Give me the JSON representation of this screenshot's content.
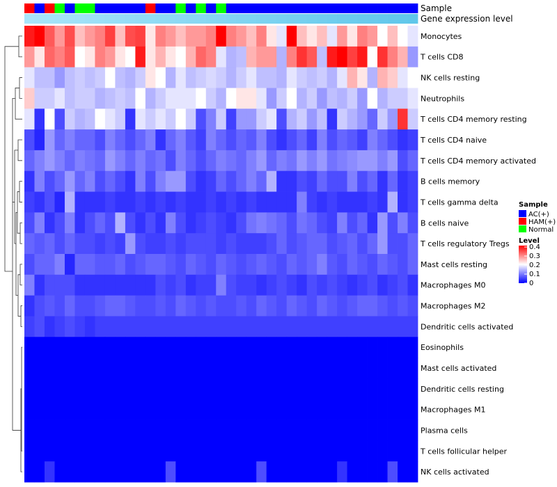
{
  "chart_data": {
    "type": "heatmap",
    "title": "",
    "n_samples": 39,
    "annotations": {
      "sample_label": "Sample",
      "expression_label": "Gene expression level",
      "sample_groups": [
        "HAM(+)",
        "AC(+)",
        "HAM(+)",
        "Normal",
        "AC(+)",
        "Normal",
        "Normal",
        "AC(+)",
        "AC(+)",
        "AC(+)",
        "AC(+)",
        "AC(+)",
        "HAM(+)",
        "AC(+)",
        "AC(+)",
        "Normal",
        "AC(+)",
        "Normal",
        "AC(+)",
        "Normal",
        "AC(+)",
        "AC(+)",
        "AC(+)",
        "AC(+)",
        "AC(+)",
        "AC(+)",
        "AC(+)",
        "AC(+)",
        "AC(+)",
        "AC(+)",
        "AC(+)",
        "AC(+)",
        "AC(+)",
        "AC(+)",
        "AC(+)",
        "AC(+)",
        "AC(+)",
        "AC(+)",
        "AC(+)"
      ],
      "expression_level": [
        0.02,
        0.04,
        0.06,
        0.08,
        0.1,
        0.12,
        0.14,
        0.16,
        0.18,
        0.2,
        0.22,
        0.24,
        0.26,
        0.28,
        0.3,
        0.32,
        0.34,
        0.36,
        0.38,
        0.4,
        0.42,
        0.44,
        0.46,
        0.48,
        0.5,
        0.52,
        0.54,
        0.56,
        0.58,
        0.6,
        0.62,
        0.64,
        0.66,
        0.68,
        0.7,
        0.72,
        0.74,
        0.76,
        0.78
      ]
    },
    "rows": [
      {
        "name": "Monocytes",
        "values": [
          0.38,
          0.4,
          0.33,
          0.28,
          0.34,
          0.25,
          0.28,
          0.3,
          0.35,
          0.25,
          0.34,
          0.35,
          0.22,
          0.3,
          0.28,
          0.25,
          0.28,
          0.28,
          0.3,
          0.4,
          0.3,
          0.28,
          0.25,
          0.3,
          0.22,
          0.18,
          0.4,
          0.25,
          0.22,
          0.25,
          0.18,
          0.28,
          0.22,
          0.3,
          0.28,
          0.2,
          0.25,
          0.2,
          0.18
        ]
      },
      {
        "name": "T cells CD8",
        "values": [
          0.28,
          0.22,
          0.32,
          0.3,
          0.33,
          0.2,
          0.22,
          0.3,
          0.28,
          0.22,
          0.2,
          0.38,
          0.22,
          0.26,
          0.22,
          0.2,
          0.26,
          0.32,
          0.3,
          0.18,
          0.14,
          0.15,
          0.26,
          0.28,
          0.28,
          0.14,
          0.3,
          0.36,
          0.33,
          0.15,
          0.38,
          0.4,
          0.35,
          0.38,
          0.2,
          0.36,
          0.3,
          0.26,
          0.12
        ]
      },
      {
        "name": "NK cells resting",
        "values": [
          0.18,
          0.15,
          0.15,
          0.12,
          0.15,
          0.16,
          0.15,
          0.16,
          0.2,
          0.15,
          0.14,
          0.16,
          0.22,
          0.2,
          0.14,
          0.18,
          0.15,
          0.16,
          0.17,
          0.16,
          0.14,
          0.16,
          0.18,
          0.15,
          0.15,
          0.14,
          0.18,
          0.16,
          0.15,
          0.16,
          0.14,
          0.18,
          0.26,
          0.22,
          0.14,
          0.26,
          0.24,
          0.18,
          0.2
        ]
      },
      {
        "name": "Neutrophils",
        "values": [
          0.24,
          0.16,
          0.16,
          0.18,
          0.15,
          0.16,
          0.16,
          0.14,
          0.15,
          0.16,
          0.15,
          0.2,
          0.14,
          0.16,
          0.18,
          0.18,
          0.18,
          0.2,
          0.16,
          0.14,
          0.2,
          0.22,
          0.22,
          0.18,
          0.12,
          0.16,
          0.2,
          0.14,
          0.16,
          0.12,
          0.15,
          0.14,
          0.16,
          0.12,
          0.2,
          0.14,
          0.16,
          0.16,
          0.18
        ]
      },
      {
        "name": "T cells CD4 memory resting",
        "values": [
          0.18,
          0.04,
          0.2,
          0.06,
          0.16,
          0.14,
          0.15,
          0.2,
          0.18,
          0.16,
          0.04,
          0.18,
          0.16,
          0.18,
          0.16,
          0.2,
          0.16,
          0.06,
          0.1,
          0.16,
          0.05,
          0.12,
          0.12,
          0.16,
          0.18,
          0.06,
          0.14,
          0.16,
          0.12,
          0.15,
          0.04,
          0.16,
          0.14,
          0.12,
          0.08,
          0.16,
          0.12,
          0.36,
          0.16
        ]
      },
      {
        "name": "T cells CD4 naive",
        "values": [
          0.06,
          0.03,
          0.12,
          0.08,
          0.1,
          0.08,
          0.08,
          0.06,
          0.1,
          0.08,
          0.06,
          0.08,
          0.1,
          0.04,
          0.08,
          0.1,
          0.07,
          0.05,
          0.1,
          0.08,
          0.06,
          0.08,
          0.07,
          0.1,
          0.06,
          0.04,
          0.06,
          0.08,
          0.05,
          0.1,
          0.06,
          0.08,
          0.07,
          0.05,
          0.1,
          0.08,
          0.06,
          0.04,
          0.05
        ]
      },
      {
        "name": "T cells CD4 memory activated",
        "values": [
          0.08,
          0.1,
          0.12,
          0.1,
          0.08,
          0.1,
          0.09,
          0.08,
          0.12,
          0.1,
          0.08,
          0.1,
          0.08,
          0.09,
          0.06,
          0.1,
          0.08,
          0.06,
          0.08,
          0.1,
          0.09,
          0.08,
          0.1,
          0.12,
          0.08,
          0.1,
          0.09,
          0.12,
          0.1,
          0.12,
          0.09,
          0.1,
          0.11,
          0.12,
          0.12,
          0.1,
          0.12,
          0.06,
          0.08
        ]
      },
      {
        "name": "B cells memory",
        "values": [
          0.04,
          0.1,
          0.06,
          0.08,
          0.12,
          0.08,
          0.1,
          0.06,
          0.08,
          0.06,
          0.04,
          0.1,
          0.06,
          0.1,
          0.12,
          0.12,
          0.06,
          0.04,
          0.05,
          0.08,
          0.06,
          0.08,
          0.1,
          0.08,
          0.14,
          0.04,
          0.04,
          0.06,
          0.05,
          0.08,
          0.06,
          0.06,
          0.1,
          0.06,
          0.08,
          0.04,
          0.08,
          0.04,
          0.05
        ]
      },
      {
        "name": "T cells gamma delta",
        "values": [
          0.05,
          0.04,
          0.06,
          0.03,
          0.14,
          0.04,
          0.04,
          0.04,
          0.05,
          0.04,
          0.04,
          0.05,
          0.04,
          0.05,
          0.04,
          0.05,
          0.04,
          0.04,
          0.05,
          0.04,
          0.05,
          0.04,
          0.05,
          0.04,
          0.04,
          0.04,
          0.04,
          0.1,
          0.05,
          0.04,
          0.05,
          0.04,
          0.04,
          0.04,
          0.05,
          0.04,
          0.14,
          0.04,
          0.05
        ]
      },
      {
        "name": "B cells naive",
        "values": [
          0.06,
          0.1,
          0.04,
          0.06,
          0.1,
          0.04,
          0.06,
          0.08,
          0.06,
          0.14,
          0.06,
          0.04,
          0.06,
          0.04,
          0.1,
          0.06,
          0.04,
          0.05,
          0.06,
          0.05,
          0.04,
          0.06,
          0.09,
          0.1,
          0.09,
          0.08,
          0.06,
          0.09,
          0.08,
          0.06,
          0.05,
          0.1,
          0.06,
          0.08,
          0.04,
          0.12,
          0.06,
          0.1,
          0.06
        ]
      },
      {
        "name": "T cells regulatory  Tregs",
        "values": [
          0.08,
          0.07,
          0.08,
          0.06,
          0.08,
          0.06,
          0.06,
          0.05,
          0.06,
          0.05,
          0.12,
          0.06,
          0.05,
          0.05,
          0.06,
          0.05,
          0.06,
          0.06,
          0.06,
          0.05,
          0.06,
          0.05,
          0.05,
          0.05,
          0.06,
          0.08,
          0.06,
          0.07,
          0.08,
          0.08,
          0.06,
          0.07,
          0.08,
          0.06,
          0.08,
          0.12,
          0.06,
          0.06,
          0.08
        ]
      },
      {
        "name": "Mast cells resting",
        "values": [
          0.06,
          0.08,
          0.08,
          0.1,
          0.03,
          0.08,
          0.08,
          0.07,
          0.07,
          0.08,
          0.06,
          0.07,
          0.08,
          0.08,
          0.07,
          0.06,
          0.08,
          0.07,
          0.06,
          0.08,
          0.07,
          0.06,
          0.07,
          0.08,
          0.07,
          0.06,
          0.08,
          0.07,
          0.08,
          0.1,
          0.07,
          0.06,
          0.08,
          0.07,
          0.06,
          0.08,
          0.07,
          0.06,
          0.08
        ]
      },
      {
        "name": "Macrophages M0",
        "values": [
          0.1,
          0.04,
          0.06,
          0.06,
          0.06,
          0.04,
          0.04,
          0.04,
          0.04,
          0.04,
          0.04,
          0.04,
          0.04,
          0.06,
          0.05,
          0.06,
          0.04,
          0.05,
          0.05,
          0.1,
          0.06,
          0.05,
          0.05,
          0.04,
          0.05,
          0.06,
          0.05,
          0.04,
          0.06,
          0.05,
          0.06,
          0.05,
          0.04,
          0.05,
          0.06,
          0.04,
          0.05,
          0.06,
          0.04
        ]
      },
      {
        "name": "Macrophages M2",
        "values": [
          0.04,
          0.06,
          0.07,
          0.06,
          0.08,
          0.06,
          0.06,
          0.07,
          0.08,
          0.08,
          0.07,
          0.06,
          0.06,
          0.07,
          0.06,
          0.08,
          0.07,
          0.06,
          0.07,
          0.06,
          0.06,
          0.07,
          0.06,
          0.08,
          0.07,
          0.06,
          0.08,
          0.07,
          0.06,
          0.08,
          0.07,
          0.06,
          0.07,
          0.08,
          0.08,
          0.07,
          0.06,
          0.07,
          0.06
        ]
      },
      {
        "name": "Dendritic cells activated",
        "values": [
          0.05,
          0.06,
          0.04,
          0.05,
          0.06,
          0.05,
          0.04,
          0.05,
          0.05,
          0.05,
          0.05,
          0.05,
          0.05,
          0.05,
          0.05,
          0.05,
          0.05,
          0.05,
          0.05,
          0.05,
          0.05,
          0.05,
          0.05,
          0.05,
          0.05,
          0.05,
          0.05,
          0.05,
          0.05,
          0.05,
          0.05,
          0.05,
          0.05,
          0.05,
          0.05,
          0.05,
          0.05,
          0.05,
          0.05
        ]
      },
      {
        "name": "Eosinophils",
        "values": [
          0.0,
          0.0,
          0.0,
          0.0,
          0.0,
          0.0,
          0.0,
          0.0,
          0.0,
          0.0,
          0.0,
          0.0,
          0.0,
          0.0,
          0.0,
          0.0,
          0.0,
          0.0,
          0.0,
          0.0,
          0.0,
          0.0,
          0.0,
          0.0,
          0.0,
          0.0,
          0.0,
          0.0,
          0.0,
          0.0,
          0.0,
          0.0,
          0.0,
          0.0,
          0.0,
          0.0,
          0.0,
          0.0,
          0.0
        ]
      },
      {
        "name": "Mast cells activated",
        "values": [
          0.0,
          0.0,
          0.0,
          0.0,
          0.0,
          0.0,
          0.0,
          0.0,
          0.0,
          0.0,
          0.0,
          0.0,
          0.0,
          0.0,
          0.0,
          0.0,
          0.0,
          0.0,
          0.0,
          0.0,
          0.0,
          0.0,
          0.0,
          0.0,
          0.0,
          0.0,
          0.0,
          0.0,
          0.0,
          0.0,
          0.0,
          0.0,
          0.0,
          0.0,
          0.0,
          0.0,
          0.0,
          0.0,
          0.0
        ]
      },
      {
        "name": "Dendritic cells resting",
        "values": [
          0.0,
          0.0,
          0.0,
          0.0,
          0.0,
          0.0,
          0.0,
          0.0,
          0.0,
          0.0,
          0.0,
          0.0,
          0.0,
          0.0,
          0.0,
          0.0,
          0.0,
          0.0,
          0.0,
          0.0,
          0.0,
          0.0,
          0.0,
          0.0,
          0.0,
          0.0,
          0.0,
          0.0,
          0.0,
          0.0,
          0.0,
          0.0,
          0.0,
          0.0,
          0.0,
          0.0,
          0.0,
          0.0,
          0.0
        ]
      },
      {
        "name": "Macrophages M1",
        "values": [
          0.0,
          0.0,
          0.0,
          0.0,
          0.0,
          0.0,
          0.0,
          0.0,
          0.0,
          0.0,
          0.0,
          0.0,
          0.0,
          0.0,
          0.0,
          0.0,
          0.0,
          0.0,
          0.0,
          0.0,
          0.0,
          0.0,
          0.0,
          0.0,
          0.0,
          0.0,
          0.0,
          0.0,
          0.0,
          0.0,
          0.0,
          0.0,
          0.0,
          0.0,
          0.0,
          0.0,
          0.0,
          0.0,
          0.0
        ]
      },
      {
        "name": "Plasma cells",
        "values": [
          0.0,
          0.0,
          0.0,
          0.0,
          0.0,
          0.0,
          0.0,
          0.0,
          0.0,
          0.0,
          0.0,
          0.0,
          0.0,
          0.0,
          0.0,
          0.0,
          0.0,
          0.0,
          0.0,
          0.0,
          0.0,
          0.0,
          0.0,
          0.0,
          0.0,
          0.0,
          0.0,
          0.0,
          0.0,
          0.0,
          0.0,
          0.0,
          0.0,
          0.0,
          0.0,
          0.0,
          0.0,
          0.0,
          0.0
        ]
      },
      {
        "name": "T cells follicular helper",
        "values": [
          0.0,
          0.0,
          0.0,
          0.0,
          0.0,
          0.0,
          0.0,
          0.0,
          0.0,
          0.0,
          0.0,
          0.0,
          0.0,
          0.0,
          0.0,
          0.0,
          0.0,
          0.0,
          0.0,
          0.0,
          0.0,
          0.0,
          0.0,
          0.0,
          0.0,
          0.0,
          0.0,
          0.0,
          0.0,
          0.0,
          0.0,
          0.0,
          0.0,
          0.0,
          0.0,
          0.0,
          0.0,
          0.0,
          0.0
        ]
      },
      {
        "name": "NK cells activated",
        "values": [
          0.0,
          0.0,
          0.04,
          0.0,
          0.0,
          0.0,
          0.0,
          0.0,
          0.0,
          0.0,
          0.0,
          0.0,
          0.0,
          0.0,
          0.06,
          0.0,
          0.0,
          0.0,
          0.0,
          0.0,
          0.0,
          0.0,
          0.0,
          0.06,
          0.0,
          0.0,
          0.0,
          0.0,
          0.0,
          0.0,
          0.0,
          0.04,
          0.0,
          0.0,
          0.0,
          0.0,
          0.06,
          0.0,
          0.0
        ]
      }
    ],
    "legend": {
      "sample_title": "Sample",
      "sample_items": [
        {
          "label": "AC(+)",
          "color": "#0000FF"
        },
        {
          "label": "HAM(+)",
          "color": "#FF0000"
        },
        {
          "label": "Normal",
          "color": "#00FF00"
        }
      ],
      "level_title": "Level",
      "level_ticks": [
        "0.4",
        "0.3",
        "0.2",
        "0.1",
        "0"
      ],
      "level_range": [
        0,
        0.4
      ]
    },
    "colors": {
      "low": "#0000FF",
      "mid": "#FFFFFF",
      "high": "#FF0000"
    }
  }
}
